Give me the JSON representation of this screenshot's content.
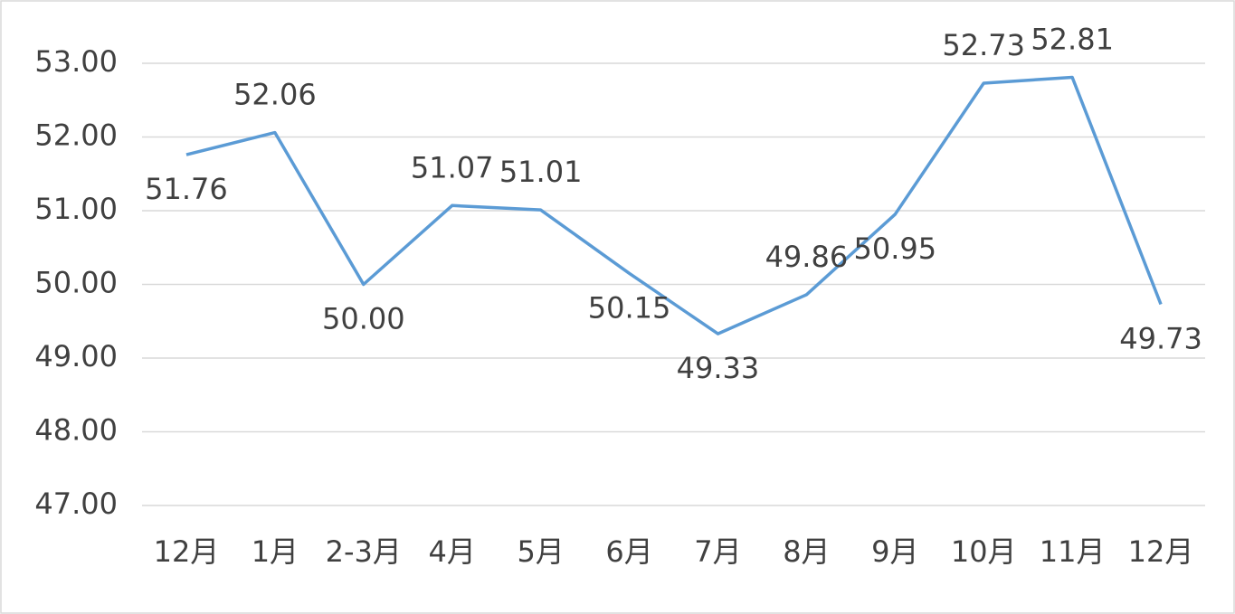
{
  "chart_data": {
    "type": "line",
    "categories": [
      "12月",
      "1月",
      "2-3月",
      "4月",
      "5月",
      "6月",
      "7月",
      "8月",
      "9月",
      "10月",
      "11月",
      "12月"
    ],
    "values": [
      51.76,
      52.06,
      50.0,
      51.07,
      51.01,
      50.15,
      49.33,
      49.86,
      50.95,
      52.73,
      52.81,
      49.73
    ],
    "value_labels": [
      "51.76",
      "52.06",
      "50.00",
      "51.07",
      "51.01",
      "50.15",
      "49.33",
      "49.86",
      "50.95",
      "52.73",
      "52.81",
      "49.73"
    ],
    "color": "#5b9bd5",
    "ylim": [
      47,
      53
    ],
    "yticks": [
      {
        "value": 47,
        "label": "47.00"
      },
      {
        "value": 48,
        "label": "48.00"
      },
      {
        "value": 49,
        "label": "49.00"
      },
      {
        "value": 50,
        "label": "50.00"
      },
      {
        "value": 51,
        "label": "51.00"
      },
      {
        "value": 52,
        "label": "52.00"
      },
      {
        "value": 53,
        "label": "53.00"
      }
    ],
    "grid": true
  }
}
